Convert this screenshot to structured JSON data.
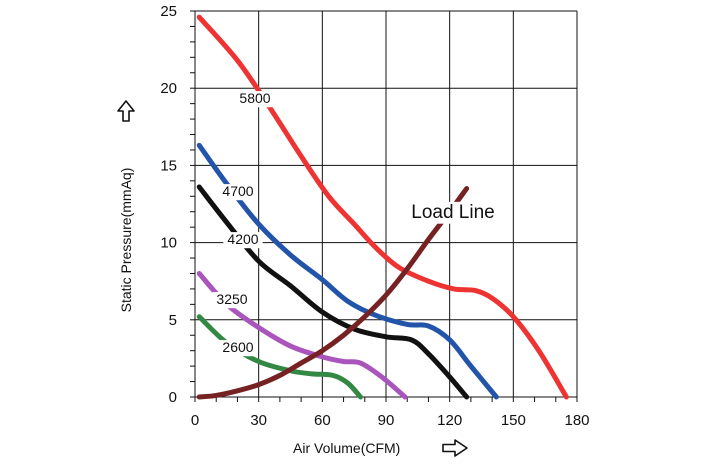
{
  "chart_data": {
    "type": "line",
    "xlabel": "Air Volume(CFM)",
    "ylabel": "Static Pressure(mmAq)",
    "xlim": [
      0,
      180
    ],
    "ylim": [
      0,
      25
    ],
    "xticks": [
      "0",
      "30",
      "60",
      "90",
      "120",
      "150",
      "180"
    ],
    "yticks": [
      "0",
      "5",
      "10",
      "15",
      "20",
      "25"
    ],
    "grid": true,
    "x_arrow_icon": "right-outline-arrow-icon",
    "y_arrow_icon": "up-outline-arrow-icon",
    "series": [
      {
        "name": "5800",
        "color": "#ee3333",
        "x": [
          2,
          20,
          35,
          50,
          63,
          75,
          85,
          96,
          110,
          122,
          132,
          140,
          150,
          162,
          175
        ],
        "y": [
          24.6,
          21.8,
          18.8,
          15.6,
          13.0,
          11.2,
          9.7,
          8.4,
          7.5,
          7.0,
          6.9,
          6.4,
          5.2,
          3.0,
          0.0
        ]
      },
      {
        "name": "4700",
        "color": "#2255aa",
        "x": [
          2,
          15,
          30,
          45,
          60,
          72,
          85,
          100,
          110,
          120,
          130,
          142
        ],
        "y": [
          16.3,
          13.8,
          11.2,
          9.2,
          7.6,
          6.2,
          5.3,
          4.7,
          4.6,
          3.7,
          2.0,
          0.0
        ]
      },
      {
        "name": "4200",
        "color": "#111111",
        "x": [
          2,
          15,
          30,
          45,
          60,
          75,
          90,
          102,
          110,
          120,
          128
        ],
        "y": [
          13.6,
          11.3,
          8.8,
          7.2,
          5.5,
          4.4,
          3.9,
          3.7,
          2.8,
          1.3,
          0.0
        ]
      },
      {
        "name": "3250",
        "color": "#aa55bb",
        "x": [
          2,
          15,
          30,
          45,
          60,
          70,
          78,
          88,
          99
        ],
        "y": [
          8.0,
          6.0,
          4.5,
          3.3,
          2.6,
          2.3,
          2.2,
          1.3,
          0.0
        ]
      },
      {
        "name": "2600",
        "color": "#338844",
        "x": [
          2,
          15,
          30,
          45,
          55,
          65,
          72,
          78
        ],
        "y": [
          5.2,
          3.5,
          2.3,
          1.7,
          1.5,
          1.4,
          0.9,
          0.0
        ]
      },
      {
        "name": "Load Line",
        "color": "#772222",
        "x": [
          2,
          10,
          20,
          30,
          40,
          50,
          60,
          70,
          80,
          90,
          100,
          110,
          120,
          128
        ],
        "y": [
          0.0,
          0.1,
          0.4,
          0.8,
          1.4,
          2.2,
          3.0,
          4.0,
          5.2,
          6.6,
          8.3,
          10.2,
          12.0,
          13.5
        ]
      }
    ]
  }
}
